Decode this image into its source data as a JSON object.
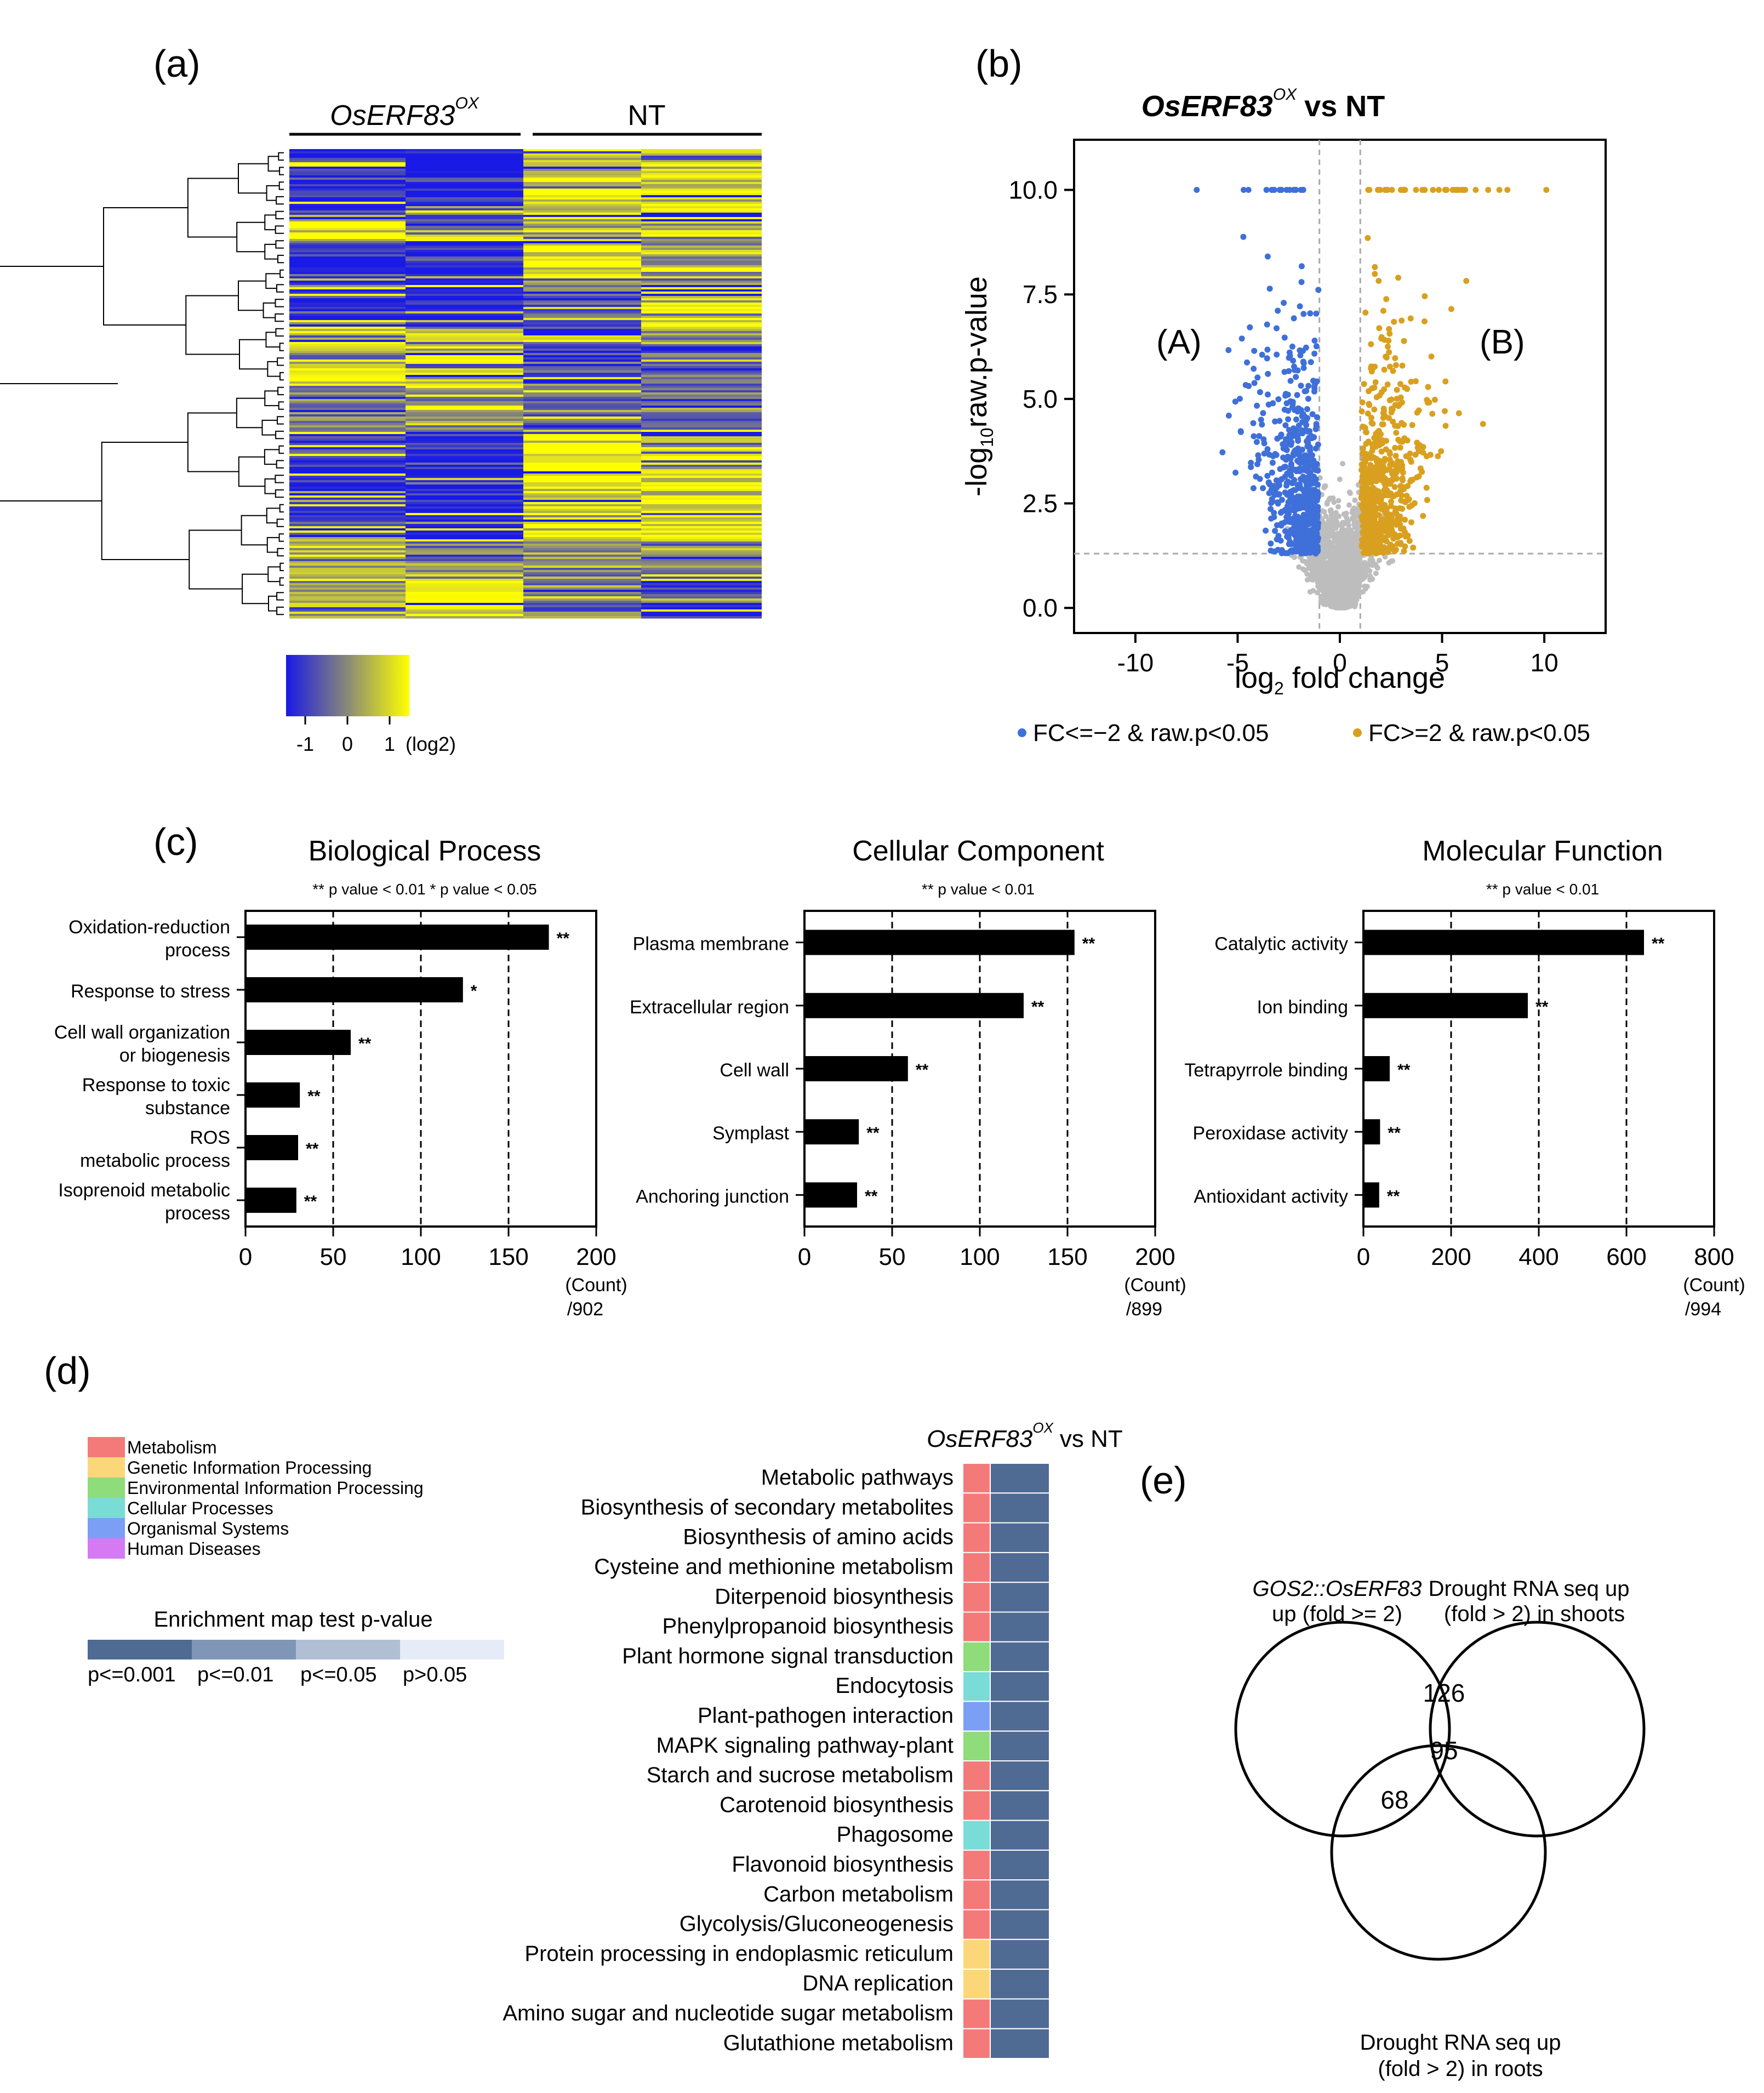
{
  "colors": {
    "heat_low": "#1a1ae6",
    "heat_mid": "#8a8a78",
    "heat_high": "#ffff00",
    "volcano_down": "#3f6fd9",
    "volcano_up": "#d9a020",
    "volcano_ns": "#bdbdbd",
    "bar": "#000000",
    "cat_metabolism": "#f47a7a",
    "cat_genetic": "#fcd77a",
    "cat_environmental": "#8fdc7a",
    "cat_cellular": "#7adcd6",
    "cat_organismal": "#7a9ff4",
    "cat_human": "#d67af4",
    "pval_1": "#4f6a93",
    "pval_2": "#7f96b6",
    "pval_3": "#b0bfd4",
    "pval_4": "#e6ecf7"
  },
  "panel_labels": {
    "a": "(a)",
    "b": "(b)",
    "c": "(c)",
    "d": "(d)",
    "e": "(e)"
  },
  "heatmap": {
    "group1_label": "OsERF83",
    "group1_sup": "OX",
    "group2_label": "NT",
    "colorbar_ticks": [
      "-1",
      "0",
      "1"
    ],
    "colorbar_unit": "(log2)"
  },
  "volcano": {
    "title_gene": "OsERF83",
    "title_sup": "OX",
    "title_rest": "vs  NT",
    "region_a": "(A)",
    "region_b": "(B)",
    "legend_down": "FC<=−2 & raw.p<0.05",
    "legend_up": "FC>=2 & raw.p<0.05"
  },
  "chart_data": [
    {
      "type": "scatter",
      "title": "OsERF83 OX vs NT",
      "xlabel": "log2 fold change",
      "ylabel": "-log10raw.p-value",
      "xlim": [
        -13,
        13
      ],
      "ylim": [
        -0.6,
        11.2
      ],
      "xticks": [
        -10,
        -5,
        0,
        5,
        10
      ],
      "yticks": [
        "0.0",
        "2.5",
        "5.0",
        "7.5",
        "10.0"
      ],
      "thresholds": {
        "fc_log2": 1,
        "p_log10": 1.3
      },
      "series": [
        {
          "name": "FC<=-2 & raw.p<0.05",
          "n_points_approx": 700,
          "x_range": [
            -7,
            -1
          ],
          "y_range": [
            1.3,
            10
          ]
        },
        {
          "name": "FC>=2 & raw.p<0.05",
          "n_points_approx": 700,
          "x_range": [
            1,
            10.2
          ],
          "y_range": [
            1.3,
            10
          ]
        },
        {
          "name": "not significant",
          "n_points_approx": 2000,
          "x_range": [
            -3,
            3
          ],
          "y_range": [
            0,
            3
          ]
        }
      ]
    },
    {
      "type": "bar",
      "orientation": "horizontal",
      "title": "Biological Process",
      "note": "** p value < 0.01  * p value < 0.05",
      "categories": [
        "Oxidation-reduction\nprocess",
        "Response to stress",
        "Cell wall organization\nor biogenesis",
        "Response to toxic\nsubstance",
        "ROS\nmetabolic process",
        "Isoprenoid metabolic\nprocess"
      ],
      "values": [
        173,
        124,
        60,
        31,
        30,
        29
      ],
      "significance": [
        "**",
        "*",
        "**",
        "**",
        "**",
        "**"
      ],
      "xlim": [
        0,
        200
      ],
      "xticks": [
        "0",
        "50",
        "100",
        "150",
        "200"
      ],
      "xlabel": "(Count)",
      "total": "/902"
    },
    {
      "type": "bar",
      "orientation": "horizontal",
      "title": "Cellular Component",
      "note": "** p value < 0.01",
      "categories": [
        "Plasma membrane",
        "Extracellular region",
        "Cell wall",
        "Symplast",
        "Anchoring junction"
      ],
      "values": [
        154,
        125,
        59,
        31,
        30
      ],
      "significance": [
        "**",
        "**",
        "**",
        "**",
        "**"
      ],
      "xlim": [
        0,
        200
      ],
      "xticks": [
        "0",
        "50",
        "100",
        "150",
        "200"
      ],
      "xlabel": "(Count)",
      "total": "/899"
    },
    {
      "type": "bar",
      "orientation": "horizontal",
      "title": "Molecular Function",
      "note": "** p value < 0.01",
      "categories": [
        "Catalytic activity",
        "Ion binding",
        "Tetrapyrrole binding",
        "Peroxidase activity",
        "Antioxidant activity"
      ],
      "values": [
        640,
        375,
        60,
        38,
        36
      ],
      "significance": [
        "**",
        "**",
        "**",
        "**",
        "**"
      ],
      "xlim": [
        0,
        800
      ],
      "xticks": [
        "0",
        "200",
        "400",
        "600",
        "800"
      ],
      "xlabel": "(Count)",
      "total": "/994"
    },
    {
      "type": "heatmap",
      "title": "OsERF83 OX vs NT",
      "legend_categories": [
        "Metabolism",
        "Genetic Information Processing",
        "Environmental Information Processing",
        "Cellular Processes",
        "Organismal Systems",
        "Human Diseases"
      ],
      "scale_title": "Enrichment map test p-value",
      "scale_labels": [
        "p<=0.001",
        "p<=0.01",
        "p<=0.05",
        "p>0.05"
      ],
      "pathways": [
        {
          "name": "Metabolic pathways",
          "category": 0,
          "pvalue_class": 0
        },
        {
          "name": "Biosynthesis of secondary metabolites",
          "category": 0,
          "pvalue_class": 0
        },
        {
          "name": "Biosynthesis of amino acids",
          "category": 0,
          "pvalue_class": 0
        },
        {
          "name": "Cysteine and methionine metabolism",
          "category": 0,
          "pvalue_class": 0
        },
        {
          "name": "Diterpenoid biosynthesis",
          "category": 0,
          "pvalue_class": 0
        },
        {
          "name": "Phenylpropanoid biosynthesis",
          "category": 0,
          "pvalue_class": 0
        },
        {
          "name": "Plant hormone signal transduction",
          "category": 2,
          "pvalue_class": 0
        },
        {
          "name": "Endocytosis",
          "category": 3,
          "pvalue_class": 0
        },
        {
          "name": "Plant-pathogen interaction",
          "category": 4,
          "pvalue_class": 0
        },
        {
          "name": "MAPK signaling pathway-plant",
          "category": 2,
          "pvalue_class": 0
        },
        {
          "name": "Starch and sucrose metabolism",
          "category": 0,
          "pvalue_class": 0
        },
        {
          "name": "Carotenoid biosynthesis",
          "category": 0,
          "pvalue_class": 0
        },
        {
          "name": "Phagosome",
          "category": 3,
          "pvalue_class": 0
        },
        {
          "name": "Flavonoid biosynthesis",
          "category": 0,
          "pvalue_class": 0
        },
        {
          "name": "Carbon metabolism",
          "category": 0,
          "pvalue_class": 0
        },
        {
          "name": "Glycolysis/Gluconeogenesis",
          "category": 0,
          "pvalue_class": 0
        },
        {
          "name": "Protein processing in endoplasmic reticulum",
          "category": 1,
          "pvalue_class": 0
        },
        {
          "name": "DNA replication",
          "category": 1,
          "pvalue_class": 0
        },
        {
          "name": "Amino sugar and nucleotide sugar metabolism",
          "category": 0,
          "pvalue_class": 0
        },
        {
          "name": "Glutathione metabolism",
          "category": 0,
          "pvalue_class": 0
        }
      ]
    }
  ],
  "venn": {
    "set1_line1": "GOS2::OsERF83",
    "set1_line2": "up (fold >= 2)",
    "set2_line1": "Drought RNA seq up",
    "set2_line2": "(fold > 2) in shoots",
    "set3_line1": "Drought RNA seq up",
    "set3_line2": "(fold > 2) in roots",
    "n_12": "126",
    "n_123": "95",
    "n_13": "68"
  }
}
